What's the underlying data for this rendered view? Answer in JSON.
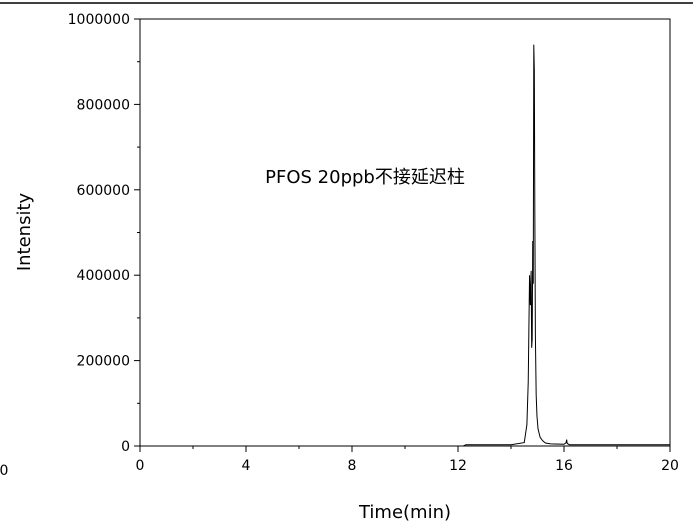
{
  "chart_data": {
    "type": "line",
    "xlabel": "Time(min)",
    "ylabel": "Intensity",
    "xlim": [
      0,
      20
    ],
    "ylim": [
      0,
      1000000
    ],
    "x_ticks": [
      0,
      4,
      8,
      12,
      16,
      20
    ],
    "x_tick_labels": [
      "0",
      "4",
      "8",
      "12",
      "16",
      "20"
    ],
    "y_ticks": [
      0,
      200000,
      400000,
      600000,
      800000,
      1000000
    ],
    "y_tick_labels": [
      "0",
      "200000",
      "400000",
      "600000",
      "800000",
      "1000000"
    ],
    "stray_tick_label": "0",
    "annotation": "PFOS 20ppb不接延迟柱",
    "grid": false,
    "series": [
      {
        "color": "#000000",
        "x": [
          0,
          12.2,
          12.3,
          14.0,
          14.5,
          14.6,
          14.65,
          14.7,
          14.73,
          14.76,
          14.78,
          14.8,
          14.82,
          14.84,
          14.86,
          14.88,
          14.9,
          14.92,
          14.95,
          14.98,
          15.02,
          15.1,
          15.2,
          15.3,
          15.5,
          16.0,
          16.08,
          16.1,
          16.12,
          16.2,
          20
        ],
        "y": [
          0,
          0,
          3000,
          3000,
          8000,
          50000,
          150000,
          400000,
          330000,
          410000,
          230000,
          250000,
          480000,
          380000,
          940000,
          880000,
          540000,
          260000,
          120000,
          70000,
          40000,
          20000,
          12000,
          7000,
          5000,
          4000,
          8000,
          15000,
          6000,
          3000,
          3000
        ]
      }
    ]
  }
}
